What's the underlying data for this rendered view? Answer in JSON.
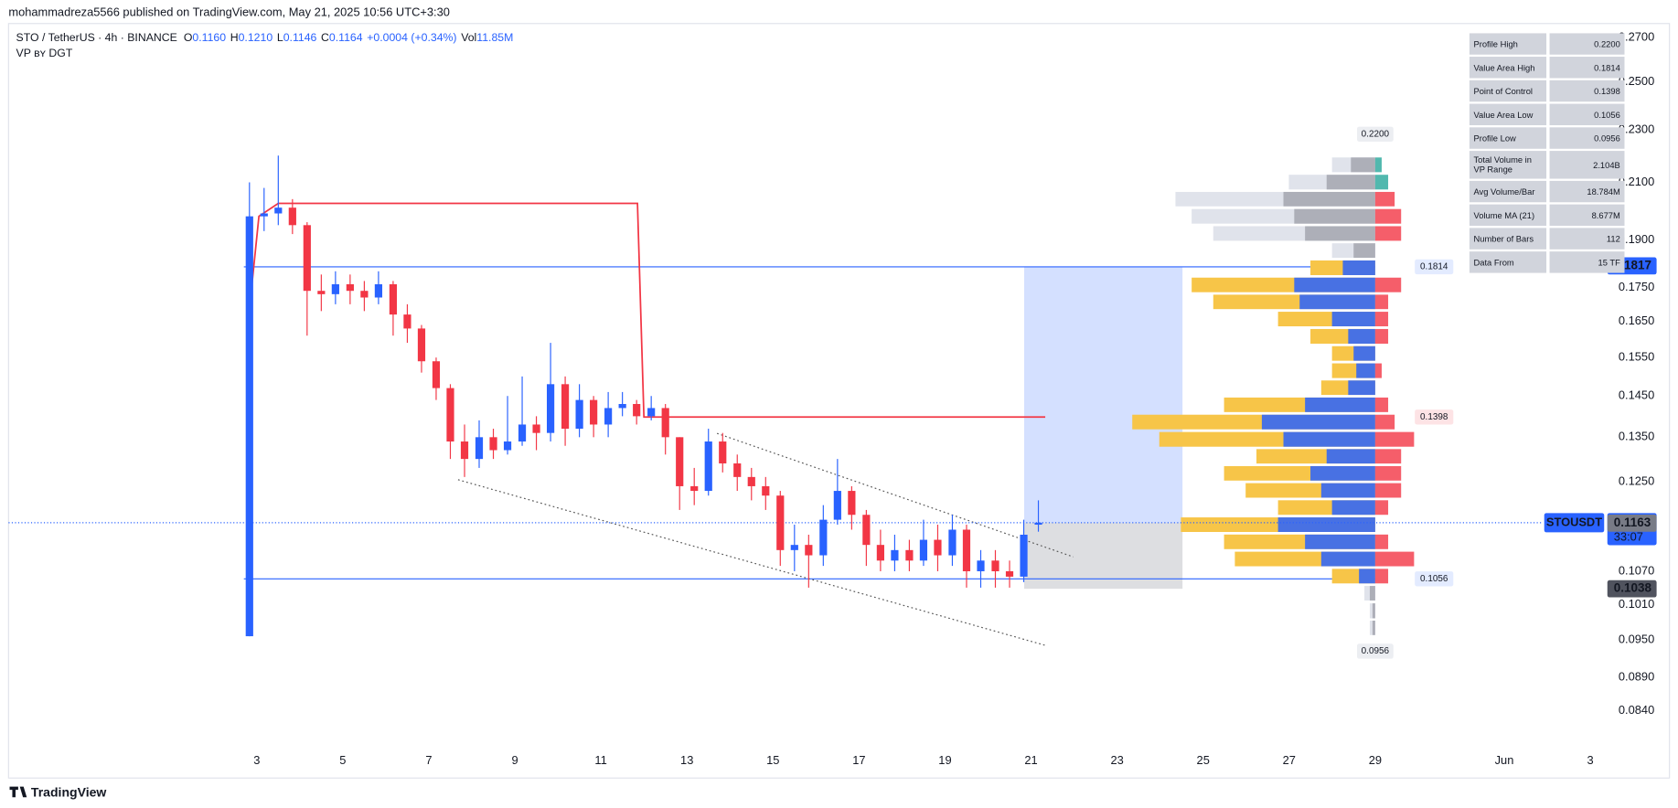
{
  "header": {
    "publisher": "mohammadreza5566 published on TradingView.com, May 21, 2025 10:56 UTC+3:30"
  },
  "footer": {
    "brand": "TradingView"
  },
  "chart_data": {
    "type": "candlestick",
    "symbol": "STO / TetherUS · 4h · BINANCE",
    "legend": [
      {
        "label": "O",
        "value": "0.1160"
      },
      {
        "label": "H",
        "value": "0.1210"
      },
      {
        "label": "L",
        "value": "0.1146"
      },
      {
        "label": "C",
        "value": "0.1164"
      }
    ],
    "change": "+0.0004 (+0.34%)",
    "volume": {
      "label": "Vol",
      "value": "11.85M"
    },
    "indicator": "VP ʙʏ DGT",
    "colors": {
      "up": "#2962ff",
      "down": "#f23645"
    },
    "x": [
      2.83,
      3.17,
      3.5,
      3.83,
      4.17,
      4.5,
      4.83,
      5.17,
      5.5,
      5.83,
      6.17,
      6.5,
      6.83,
      7.17,
      7.5,
      7.83,
      8.17,
      8.5,
      8.83,
      9.17,
      9.5,
      9.83,
      10.17,
      10.5,
      10.83,
      11.17,
      11.5,
      11.83,
      12.17,
      12.5,
      12.83,
      13.17,
      13.5,
      13.83,
      14.17,
      14.5,
      14.83,
      15.17,
      15.5,
      15.83,
      16.17,
      16.5,
      16.83,
      17.17,
      17.5,
      17.83,
      18.17,
      18.5,
      18.83,
      19.17,
      19.5,
      19.83,
      20.17,
      20.5,
      20.83,
      21.17
    ],
    "open": [
      0.0956,
      0.198,
      0.199,
      0.201,
      0.195,
      0.174,
      0.173,
      0.176,
      0.174,
      0.172,
      0.176,
      0.167,
      0.163,
      0.154,
      0.147,
      0.134,
      0.13,
      0.135,
      0.132,
      0.134,
      0.138,
      0.136,
      0.148,
      0.137,
      0.144,
      0.138,
      0.142,
      0.143,
      0.14,
      0.142,
      0.135,
      0.124,
      0.123,
      0.134,
      0.129,
      0.126,
      0.124,
      0.122,
      0.111,
      0.112,
      0.11,
      0.117,
      0.123,
      0.118,
      0.112,
      0.109,
      0.111,
      0.109,
      0.113,
      0.11,
      0.115,
      0.107,
      0.109,
      0.107,
      0.106,
      0.116
    ],
    "high": [
      0.21,
      0.208,
      0.22,
      0.204,
      0.196,
      0.179,
      0.18,
      0.179,
      0.177,
      0.18,
      0.177,
      0.17,
      0.164,
      0.155,
      0.148,
      0.138,
      0.139,
      0.137,
      0.145,
      0.15,
      0.14,
      0.159,
      0.15,
      0.148,
      0.145,
      0.146,
      0.146,
      0.144,
      0.145,
      0.143,
      0.135,
      0.128,
      0.137,
      0.136,
      0.131,
      0.128,
      0.126,
      0.123,
      0.116,
      0.114,
      0.12,
      0.13,
      0.124,
      0.119,
      0.115,
      0.114,
      0.113,
      0.117,
      0.116,
      0.118,
      0.116,
      0.111,
      0.111,
      0.109,
      0.117,
      0.121
    ],
    "low": [
      0.0956,
      0.193,
      0.195,
      0.192,
      0.161,
      0.168,
      0.17,
      0.17,
      0.168,
      0.17,
      0.161,
      0.159,
      0.151,
      0.144,
      0.13,
      0.126,
      0.128,
      0.13,
      0.131,
      0.133,
      0.132,
      0.134,
      0.133,
      0.135,
      0.135,
      0.135,
      0.14,
      0.138,
      0.139,
      0.131,
      0.119,
      0.12,
      0.122,
      0.127,
      0.123,
      0.121,
      0.119,
      0.108,
      0.107,
      0.104,
      0.108,
      0.116,
      0.115,
      0.108,
      0.107,
      0.107,
      0.107,
      0.108,
      0.107,
      0.108,
      0.104,
      0.104,
      0.104,
      0.104,
      0.105,
      0.1146
    ],
    "close": [
      0.198,
      0.199,
      0.201,
      0.195,
      0.174,
      0.173,
      0.176,
      0.174,
      0.172,
      0.176,
      0.167,
      0.163,
      0.154,
      0.147,
      0.134,
      0.13,
      0.135,
      0.132,
      0.134,
      0.138,
      0.136,
      0.148,
      0.137,
      0.144,
      0.138,
      0.142,
      0.143,
      0.14,
      0.142,
      0.135,
      0.124,
      0.123,
      0.134,
      0.129,
      0.126,
      0.124,
      0.122,
      0.111,
      0.112,
      0.11,
      0.117,
      0.123,
      0.118,
      0.112,
      0.109,
      0.111,
      0.109,
      0.113,
      0.11,
      0.115,
      0.107,
      0.109,
      0.107,
      0.106,
      0.114,
      0.1164
    ],
    "xlim": [
      -2.77,
      35.84
    ],
    "xticks": [
      3,
      5,
      7,
      9,
      11,
      13,
      15,
      17,
      19,
      21,
      23,
      25,
      27,
      29,
      {
        "value": 32,
        "label": "Jun"
      },
      {
        "value": 34,
        "label": "3"
      }
    ],
    "log": true,
    "grid": false,
    "ylim": [
      0.0786,
      0.2766
    ],
    "yticks": [
      {
        "value": 0.27,
        "label": "0.2700"
      },
      {
        "value": 0.25,
        "label": "0.2500"
      },
      {
        "value": 0.23,
        "label": "0.2300"
      },
      {
        "value": 0.21,
        "label": "0.2100"
      },
      {
        "value": 0.19,
        "label": "0.1900"
      },
      {
        "value": 0.175,
        "label": "0.1750"
      },
      {
        "value": 0.165,
        "label": "0.1650"
      },
      {
        "value": 0.155,
        "label": "0.1550"
      },
      {
        "value": 0.145,
        "label": "0.1450"
      },
      {
        "value": 0.135,
        "label": "0.1350"
      },
      {
        "value": 0.125,
        "label": "0.1250"
      },
      {
        "value": 0.107,
        "label": "0.1070"
      },
      {
        "value": 0.101,
        "label": "0.1010"
      },
      {
        "value": 0.095,
        "label": "0.0950"
      },
      {
        "value": 0.089,
        "label": "0.0890"
      },
      {
        "value": 0.084,
        "label": "0.0840"
      }
    ],
    "poc_path": {
      "color": "#f23645",
      "x": [
        2.8,
        3.05,
        3.5,
        11.85,
        12.0,
        21.33
      ],
      "values": [
        0.165,
        0.198,
        0.2025,
        0.2025,
        0.1398,
        0.1398
      ]
    },
    "value_area": {
      "high": 0.1814,
      "low": 0.1056,
      "poc": 0.1398,
      "x_start": 2.7,
      "anchor_x": 29,
      "color": "#2962ff",
      "poc_color": "#f23645"
    },
    "profile_high": {
      "value": 0.22,
      "label": "0.2200"
    },
    "profile_low": 0.0956,
    "volume_profile": {
      "colors": {
        "va_up": "#2962ff",
        "va_down": "#f7c548",
        "out_up": "#a3a6af",
        "out_down": "#e0e3eb",
        "delta_up": "#26a69a",
        "delta_down": "#f23645"
      },
      "prices": [
        0.097,
        0.0999,
        0.103,
        0.1061,
        0.1093,
        0.1126,
        0.116,
        0.1195,
        0.1231,
        0.1268,
        0.1306,
        0.1345,
        0.1386,
        0.1428,
        0.1471,
        0.1515,
        0.1561,
        0.1608,
        0.1657,
        0.1707,
        0.1758,
        0.1811,
        0.1866,
        0.1922,
        0.198,
        0.204,
        0.2101,
        0.2165
      ],
      "volumes": [
        2,
        2,
        4,
        16,
        52,
        56,
        72,
        36,
        48,
        56,
        44,
        80,
        90,
        56,
        20,
        16,
        16,
        24,
        36,
        60,
        68,
        24,
        16,
        60,
        68,
        74,
        32,
        16
      ],
      "up_volumes": [
        1,
        1,
        2,
        6,
        20,
        26,
        36,
        16,
        20,
        24,
        18,
        34,
        42,
        26,
        10,
        7,
        8,
        10,
        16,
        28,
        30,
        12,
        8,
        26,
        30,
        34,
        18,
        9
      ]
    },
    "channel": {
      "upper": {
        "x": [
          13.7,
          21.98
        ],
        "values": [
          0.1359,
          0.1097
        ]
      },
      "lower": {
        "x": [
          7.68,
          21.33
        ],
        "values": [
          0.1254,
          0.0941
        ]
      }
    },
    "position": {
      "x": [
        20.84,
        24.52
      ],
      "target": 0.1814,
      "entry": 0.1164,
      "stop": 0.1038
    },
    "last_price": 0.1164,
    "symbol_tag": "STOUSDT",
    "countdown": "33:07",
    "axis_tags": [
      {
        "value": 0.1817,
        "color": "#2962ff"
      },
      {
        "value": 0.1163,
        "color": "#787b86"
      },
      {
        "value": 0.1038,
        "color": "#50535e"
      }
    ],
    "stats_table": [
      [
        "Profile High",
        "0.2200"
      ],
      [
        "Value Area High",
        "0.1814"
      ],
      [
        "Point of Control",
        "0.1398"
      ],
      [
        "Value Area Low",
        "0.1056"
      ],
      [
        "Profile Low",
        "0.0956"
      ],
      [
        "Total Volume in VP Range",
        "2.104B"
      ],
      [
        "Avg Volume/Bar",
        "18.784M"
      ],
      [
        "Volume MA (21)",
        "8.677M"
      ],
      [
        "Number of Bars",
        "112"
      ],
      [
        "Data From",
        "15 TF"
      ]
    ]
  }
}
